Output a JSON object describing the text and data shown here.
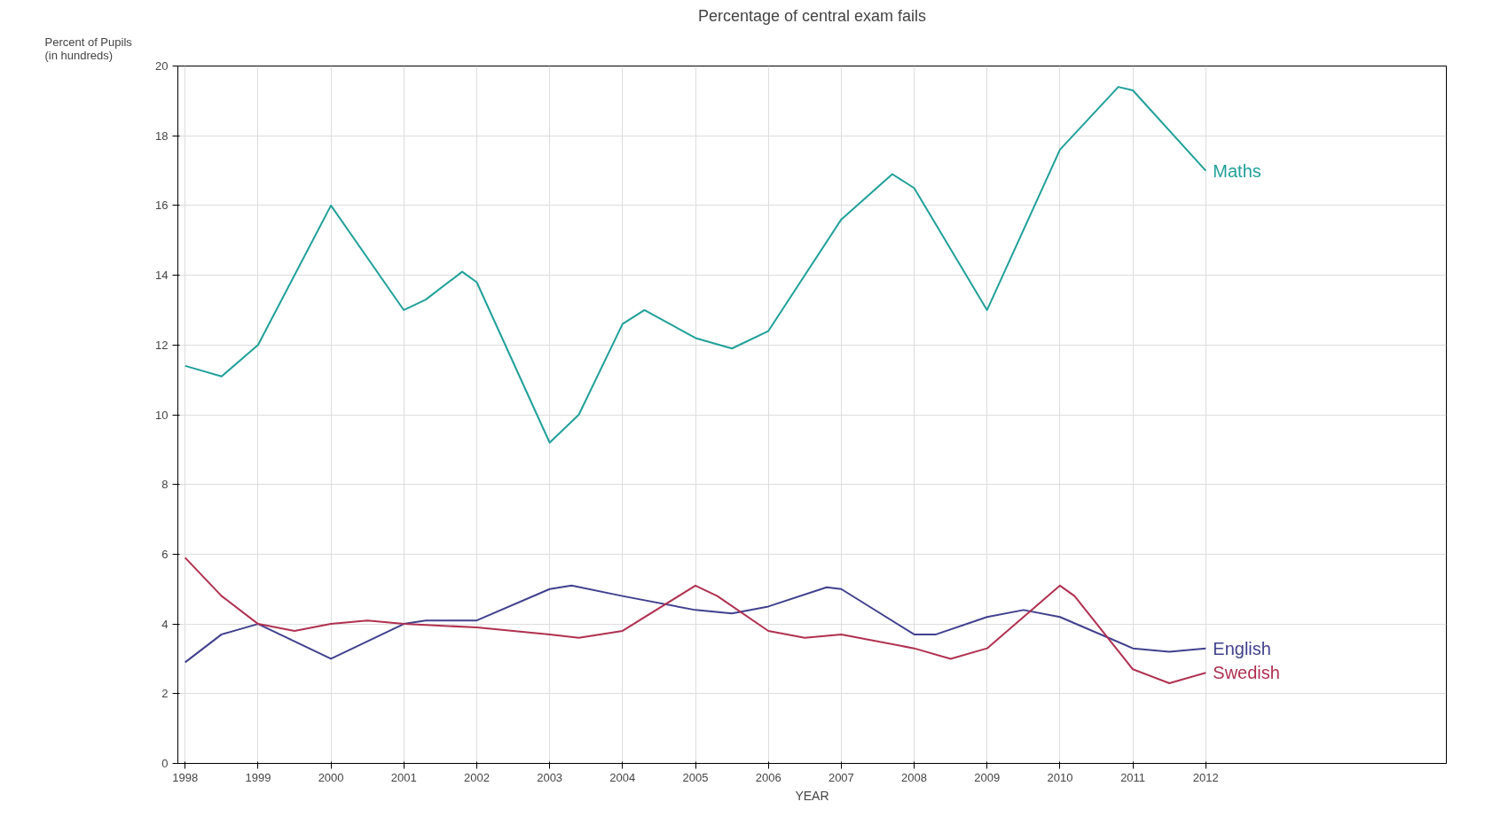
{
  "chart_data": {
    "type": "line",
    "title": "Percentage of central exam fails",
    "xlabel": "YEAR",
    "ylabel": "Percent of Pupils\n(in hundreds)",
    "xlim": [
      1997.9,
      2015.3
    ],
    "xticks": [
      1998,
      1999,
      2000,
      2001,
      2002,
      2003,
      2004,
      2005,
      2006,
      2007,
      2008,
      2009,
      2010,
      2011,
      2012
    ],
    "ylim": [
      0,
      20
    ],
    "yticks": [
      0,
      2,
      4,
      6,
      8,
      10,
      12,
      14,
      16,
      18,
      20
    ],
    "grid": true,
    "marker": "none",
    "line_style": "solid",
    "series": [
      {
        "name": "Maths",
        "color": "#20a09a",
        "x": [
          1998,
          1998.5,
          1999,
          2000,
          2001,
          2001.3,
          2001.8,
          2002,
          2003,
          2003.4,
          2004,
          2004.3,
          2005,
          2005.5,
          2006,
          2007,
          2007.7,
          2008,
          2009,
          2010,
          2010.8,
          2011,
          2012
        ],
        "values": [
          11.4,
          11.1,
          12,
          16,
          13,
          13.3,
          14.1,
          13.8,
          9.2,
          10,
          12.6,
          13,
          12.2,
          11.9,
          12.4,
          15.6,
          16.9,
          16.5,
          13,
          17.6,
          19.4,
          19.3,
          17
        ]
      },
      {
        "name": "English",
        "color": "#40408f",
        "x": [
          1998,
          1998.5,
          1999,
          2000,
          2001,
          2001.3,
          2002,
          2003,
          2003.3,
          2004,
          2005,
          2005.5,
          2006,
          2006.8,
          2007,
          2008,
          2008.3,
          2009,
          2009.5,
          2010,
          2011,
          2011.5,
          2012
        ],
        "values": [
          2.9,
          3.7,
          4,
          3,
          4,
          4.1,
          4.1,
          5,
          5.1,
          4.8,
          4.4,
          4.3,
          4.5,
          5.05,
          5,
          3.7,
          3.7,
          4.2,
          4.4,
          4.2,
          3.3,
          3.2,
          3.3
        ]
      },
      {
        "name": "Swedish",
        "color": "#b03050",
        "x": [
          1998,
          1998.5,
          1999,
          1999.5,
          2000,
          2000.5,
          2001,
          2002,
          2003,
          2003.4,
          2004,
          2005,
          2005.3,
          2006,
          2006.5,
          2007,
          2008,
          2008.5,
          2009,
          2010,
          2010.2,
          2011,
          2011.5,
          2012
        ],
        "values": [
          5.9,
          4.8,
          4,
          3.8,
          4,
          4.1,
          4,
          3.9,
          3.7,
          3.6,
          3.8,
          5.1,
          4.8,
          3.8,
          3.6,
          3.7,
          3.3,
          3,
          3.3,
          5.1,
          4.8,
          2.7,
          2.3,
          2.6
        ]
      }
    ]
  }
}
